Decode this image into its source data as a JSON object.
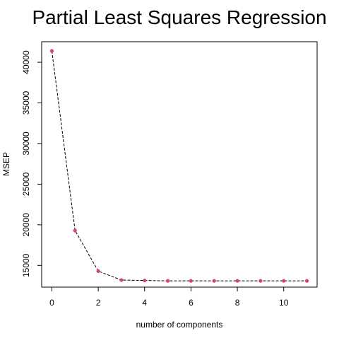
{
  "chart_data": {
    "type": "line",
    "title": "Partial Least Squares Regression",
    "xlabel": "number of components",
    "ylabel": "MSEP",
    "x": [
      0,
      1,
      2,
      3,
      4,
      5,
      6,
      7,
      8,
      9,
      10,
      11
    ],
    "series": [
      {
        "values": [
          41400,
          19300,
          14300,
          13200,
          13150,
          13100,
          13100,
          13100,
          13100,
          13100,
          13100,
          13100
        ],
        "line_color": "#000000",
        "line_style": "dashed",
        "marker_color": "#d6456a"
      }
    ],
    "xlim": [
      -0.44,
      11.44
    ],
    "ylim": [
      12330,
      42530
    ],
    "x_ticks": [
      0,
      2,
      4,
      6,
      8,
      10
    ],
    "y_ticks": [
      15000,
      20000,
      25000,
      30000,
      35000,
      40000
    ],
    "grid": false,
    "legend": "none"
  }
}
